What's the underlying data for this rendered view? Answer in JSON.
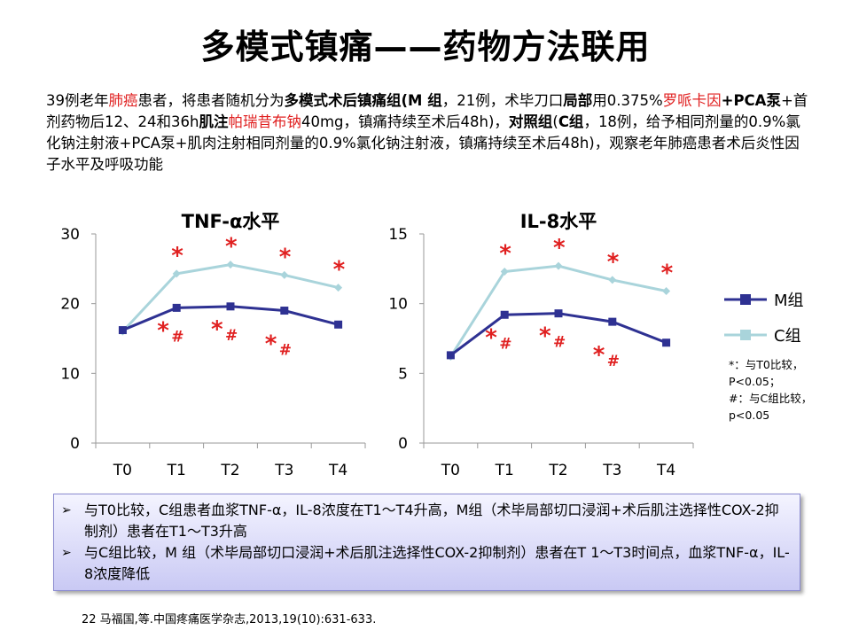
{
  "title": "多模式镇痛——药物方法联用",
  "intro": {
    "p1": "39例老年",
    "p2": "肺癌",
    "p3": "患者，将患者随机分为",
    "p4": "多模式术后镇痛组",
    "p5": "(",
    "p6": "M 组",
    "p7": "，21例，术毕刀口",
    "p8": "局部",
    "p9": "用0.375%",
    "p10": "罗哌卡因",
    "p11": "+",
    "p12": "PCA泵",
    "p13": "+首剂药物后12、24和36h",
    "p14": "肌注",
    "p15": "帕瑞昔布钠",
    "p16": "40mg，镇痛持续至术后48h)，",
    "p17": "对照组",
    "p18": "(",
    "p19": "C组",
    "p20": "，18例，给予相同剂量的0.9%氯化钠注射液+PCA泵+肌肉注射相同剂量的0.9%氯化钠注射液，镇痛持续至术后48h)，观察老年肺癌患者术后炎性因子水平及呼吸功能"
  },
  "legend": {
    "m": "M组",
    "c": "C组"
  },
  "note": [
    "*：与T0比较，",
    "P<0.05；",
    "#：与C组比较，",
    "p<0.05"
  ],
  "summary": {
    "bullet": "➢",
    "item1": "与T0比较，C组患者血浆TNF-α，IL-8浓度在T1～T4升高，M组（术毕局部切口浸润+术后肌注选择性COX-2抑制剂）患者在T1～T3升高",
    "item2": "与C组比较，M 组（术毕局部切口浸润+术后肌注选择性COX-2抑制剂）患者在T 1～T3时间点，血浆TNF-α，IL-8浓度降低"
  },
  "citation": "22 马福国,等.中国疼痛医学杂志,2013,19(10):631-633.",
  "colors": {
    "m": "#2e3192",
    "c": "#a9d4db",
    "sig": "#e02020"
  },
  "chart_data": [
    {
      "type": "line",
      "title": "TNF-α水平",
      "categories": [
        "T0",
        "T1",
        "T2",
        "T3",
        "T4"
      ],
      "ylim": [
        0,
        30
      ],
      "yticks": [
        0,
        10,
        20,
        30
      ],
      "series": [
        {
          "name": "M组",
          "values": [
            16.2,
            19.4,
            19.6,
            19.0,
            17.0
          ],
          "marks": [
            "",
            "*",
            "*",
            "*",
            ""
          ],
          "sub": [
            "",
            "#",
            "#",
            "#",
            ""
          ]
        },
        {
          "name": "C组",
          "values": [
            16.0,
            24.3,
            25.6,
            24.1,
            22.3
          ],
          "marks": [
            "",
            "*",
            "*",
            "*",
            "*"
          ],
          "sub": [
            "",
            "",
            "",
            "",
            ""
          ]
        }
      ]
    },
    {
      "type": "line",
      "title": "IL-8水平",
      "categories": [
        "T0",
        "T1",
        "T2",
        "T3",
        "T4"
      ],
      "ylim": [
        0,
        15
      ],
      "yticks": [
        0,
        5,
        10,
        15
      ],
      "series": [
        {
          "name": "M组",
          "values": [
            6.3,
            9.2,
            9.3,
            8.7,
            7.2
          ],
          "marks": [
            "",
            "*",
            "*",
            "*",
            ""
          ],
          "sub": [
            "",
            "#",
            "#",
            "#",
            ""
          ]
        },
        {
          "name": "C组",
          "values": [
            6.2,
            12.3,
            12.7,
            11.7,
            10.9
          ],
          "marks": [
            "",
            "*",
            "*",
            "*",
            "*"
          ],
          "sub": [
            "",
            "",
            "",
            "",
            ""
          ]
        }
      ]
    }
  ]
}
